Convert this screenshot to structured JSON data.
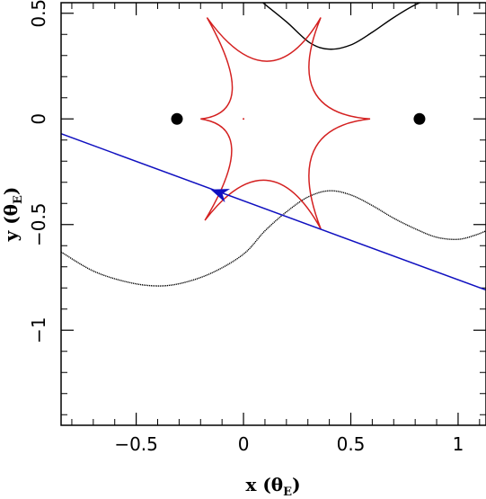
{
  "chart_data": {
    "type": "line",
    "xlabel": "x (θ",
    "xlabel_sub": "E",
    "xlabel_close": ")",
    "ylabel": "y (θ",
    "ylabel_sub": "E",
    "ylabel_close": ")",
    "xlim": [
      -0.85,
      1.13
    ],
    "ylim": [
      -1.45,
      0.55
    ],
    "x_major_ticks": [
      -0.5,
      0,
      0.5,
      1
    ],
    "x_tick_labels": [
      "−0.5",
      "0",
      "0.5",
      "1"
    ],
    "y_major_ticks": [
      -1,
      -0.5,
      0,
      0.5
    ],
    "y_tick_labels": [
      "−1",
      "−0.5",
      "0",
      "0.5"
    ],
    "x_minor_step": 0.1,
    "y_minor_step": 0.1,
    "grid": false,
    "lens_masses": [
      {
        "x": -0.31,
        "y": 0.0
      },
      {
        "x": 0.82,
        "y": 0.0
      }
    ],
    "lens_center": {
      "x": 0.0,
      "y": 0.0
    },
    "caustic": {
      "color": "#d42020",
      "cusps": [
        {
          "x": -0.17,
          "y": 0.48
        },
        {
          "x": 0.36,
          "y": 0.48
        },
        {
          "x": 0.59,
          "y": 0.0
        },
        {
          "x": 0.36,
          "y": -0.52
        },
        {
          "x": -0.18,
          "y": -0.48
        },
        {
          "x": -0.2,
          "y": 0.0
        }
      ]
    },
    "source_trajectory": {
      "color": "#1010c0",
      "points": [
        {
          "x": -0.85,
          "y": -0.07
        },
        {
          "x": 1.13,
          "y": -0.81
        }
      ],
      "arrow_at": {
        "x": -0.11,
        "y": -0.35
      },
      "arrow_direction": "toward upper-left"
    },
    "light_curve_top": {
      "color": "#000000",
      "points": [
        {
          "x": 0.09,
          "y": 0.55
        },
        {
          "x": 0.2,
          "y": 0.46
        },
        {
          "x": 0.31,
          "y": 0.36
        },
        {
          "x": 0.4,
          "y": 0.33
        },
        {
          "x": 0.5,
          "y": 0.35
        },
        {
          "x": 0.6,
          "y": 0.41
        },
        {
          "x": 0.7,
          "y": 0.48
        },
        {
          "x": 0.8,
          "y": 0.54
        },
        {
          "x": 0.9,
          "y": 0.58
        }
      ]
    },
    "light_curve_bottom": {
      "color": "#000000",
      "points": [
        {
          "x": -0.85,
          "y": -0.63
        },
        {
          "x": -0.7,
          "y": -0.72
        },
        {
          "x": -0.55,
          "y": -0.77
        },
        {
          "x": -0.42,
          "y": -0.79
        },
        {
          "x": -0.3,
          "y": -0.78
        },
        {
          "x": -0.15,
          "y": -0.73
        },
        {
          "x": 0.0,
          "y": -0.64
        },
        {
          "x": 0.1,
          "y": -0.53
        },
        {
          "x": 0.2,
          "y": -0.44
        },
        {
          "x": 0.3,
          "y": -0.37
        },
        {
          "x": 0.4,
          "y": -0.34
        },
        {
          "x": 0.5,
          "y": -0.36
        },
        {
          "x": 0.6,
          "y": -0.41
        },
        {
          "x": 0.7,
          "y": -0.47
        },
        {
          "x": 0.8,
          "y": -0.52
        },
        {
          "x": 0.9,
          "y": -0.56
        },
        {
          "x": 1.0,
          "y": -0.57
        },
        {
          "x": 1.08,
          "y": -0.55
        },
        {
          "x": 1.13,
          "y": -0.53
        }
      ]
    }
  }
}
